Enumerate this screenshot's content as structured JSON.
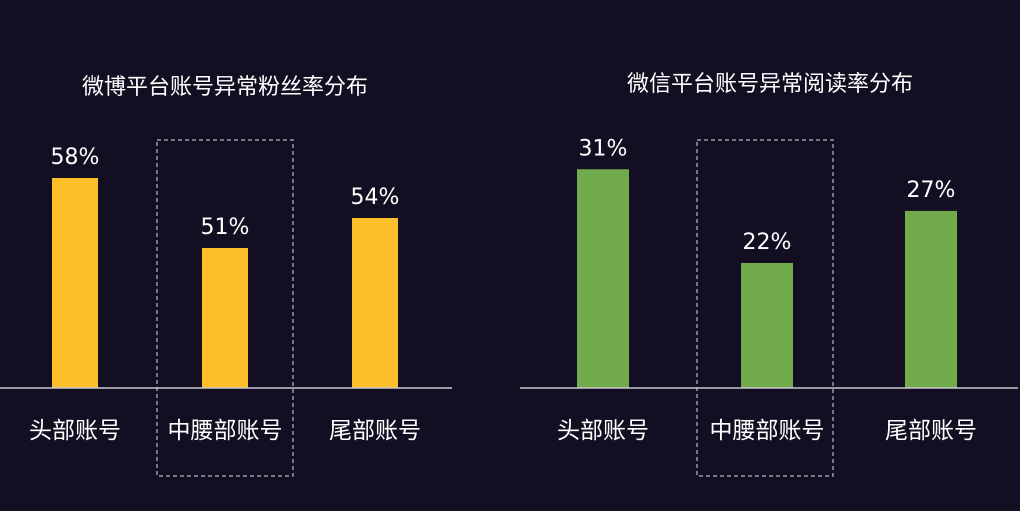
{
  "chart_data": [
    {
      "type": "bar",
      "title": "微博平台账号异常粉丝率分布",
      "categories": [
        "头部账号",
        "中腰部账号",
        "尾部账号"
      ],
      "values": [
        58,
        51,
        54
      ],
      "value_labels": [
        "58%",
        "51%",
        "54%"
      ],
      "ylim": [
        37,
        63
      ],
      "highlight_category": "中腰部账号",
      "color": "#fbbf2a",
      "xlabel": "",
      "ylabel": ""
    },
    {
      "type": "bar",
      "title": "微信平台账号异常阅读率分布",
      "categories": [
        "头部账号",
        "中腰部账号",
        "尾部账号"
      ],
      "values": [
        31,
        22,
        27
      ],
      "value_labels": [
        "31%",
        "22%",
        "27%"
      ],
      "ylim": [
        10,
        34
      ],
      "highlight_category": "中腰部账号",
      "color": "#72ab4b",
      "xlabel": "",
      "ylabel": ""
    }
  ],
  "colors": {
    "background": "#130e21",
    "axis": "#c8c8d0",
    "text": "#ffffff"
  }
}
